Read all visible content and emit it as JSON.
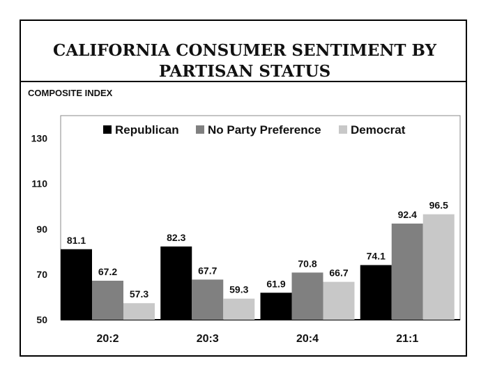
{
  "chart_data": {
    "type": "bar",
    "title": "CALIFORNIA CONSUMER SENTIMENT BY PARTISAN STATUS",
    "title_lines": [
      "CALIFORNIA CONSUMER SENTIMENT BY",
      "PARTISAN STATUS"
    ],
    "ylabel": "COMPOSITE INDEX",
    "xlabel": "",
    "ylim": [
      50,
      140
    ],
    "yticks": [
      50,
      70,
      90,
      110,
      130
    ],
    "categories": [
      "20:2",
      "20:3",
      "20:4",
      "21:1"
    ],
    "series": [
      {
        "name": "Republican",
        "color": "#000000",
        "values": [
          81.1,
          82.3,
          61.9,
          74.1
        ]
      },
      {
        "name": "No Party Preference",
        "color": "#808080",
        "values": [
          67.2,
          67.7,
          70.8,
          92.4
        ]
      },
      {
        "name": "Democrat",
        "color": "#c8c8c8",
        "values": [
          57.3,
          59.3,
          66.7,
          96.5
        ]
      }
    ],
    "legend_position": "top"
  }
}
